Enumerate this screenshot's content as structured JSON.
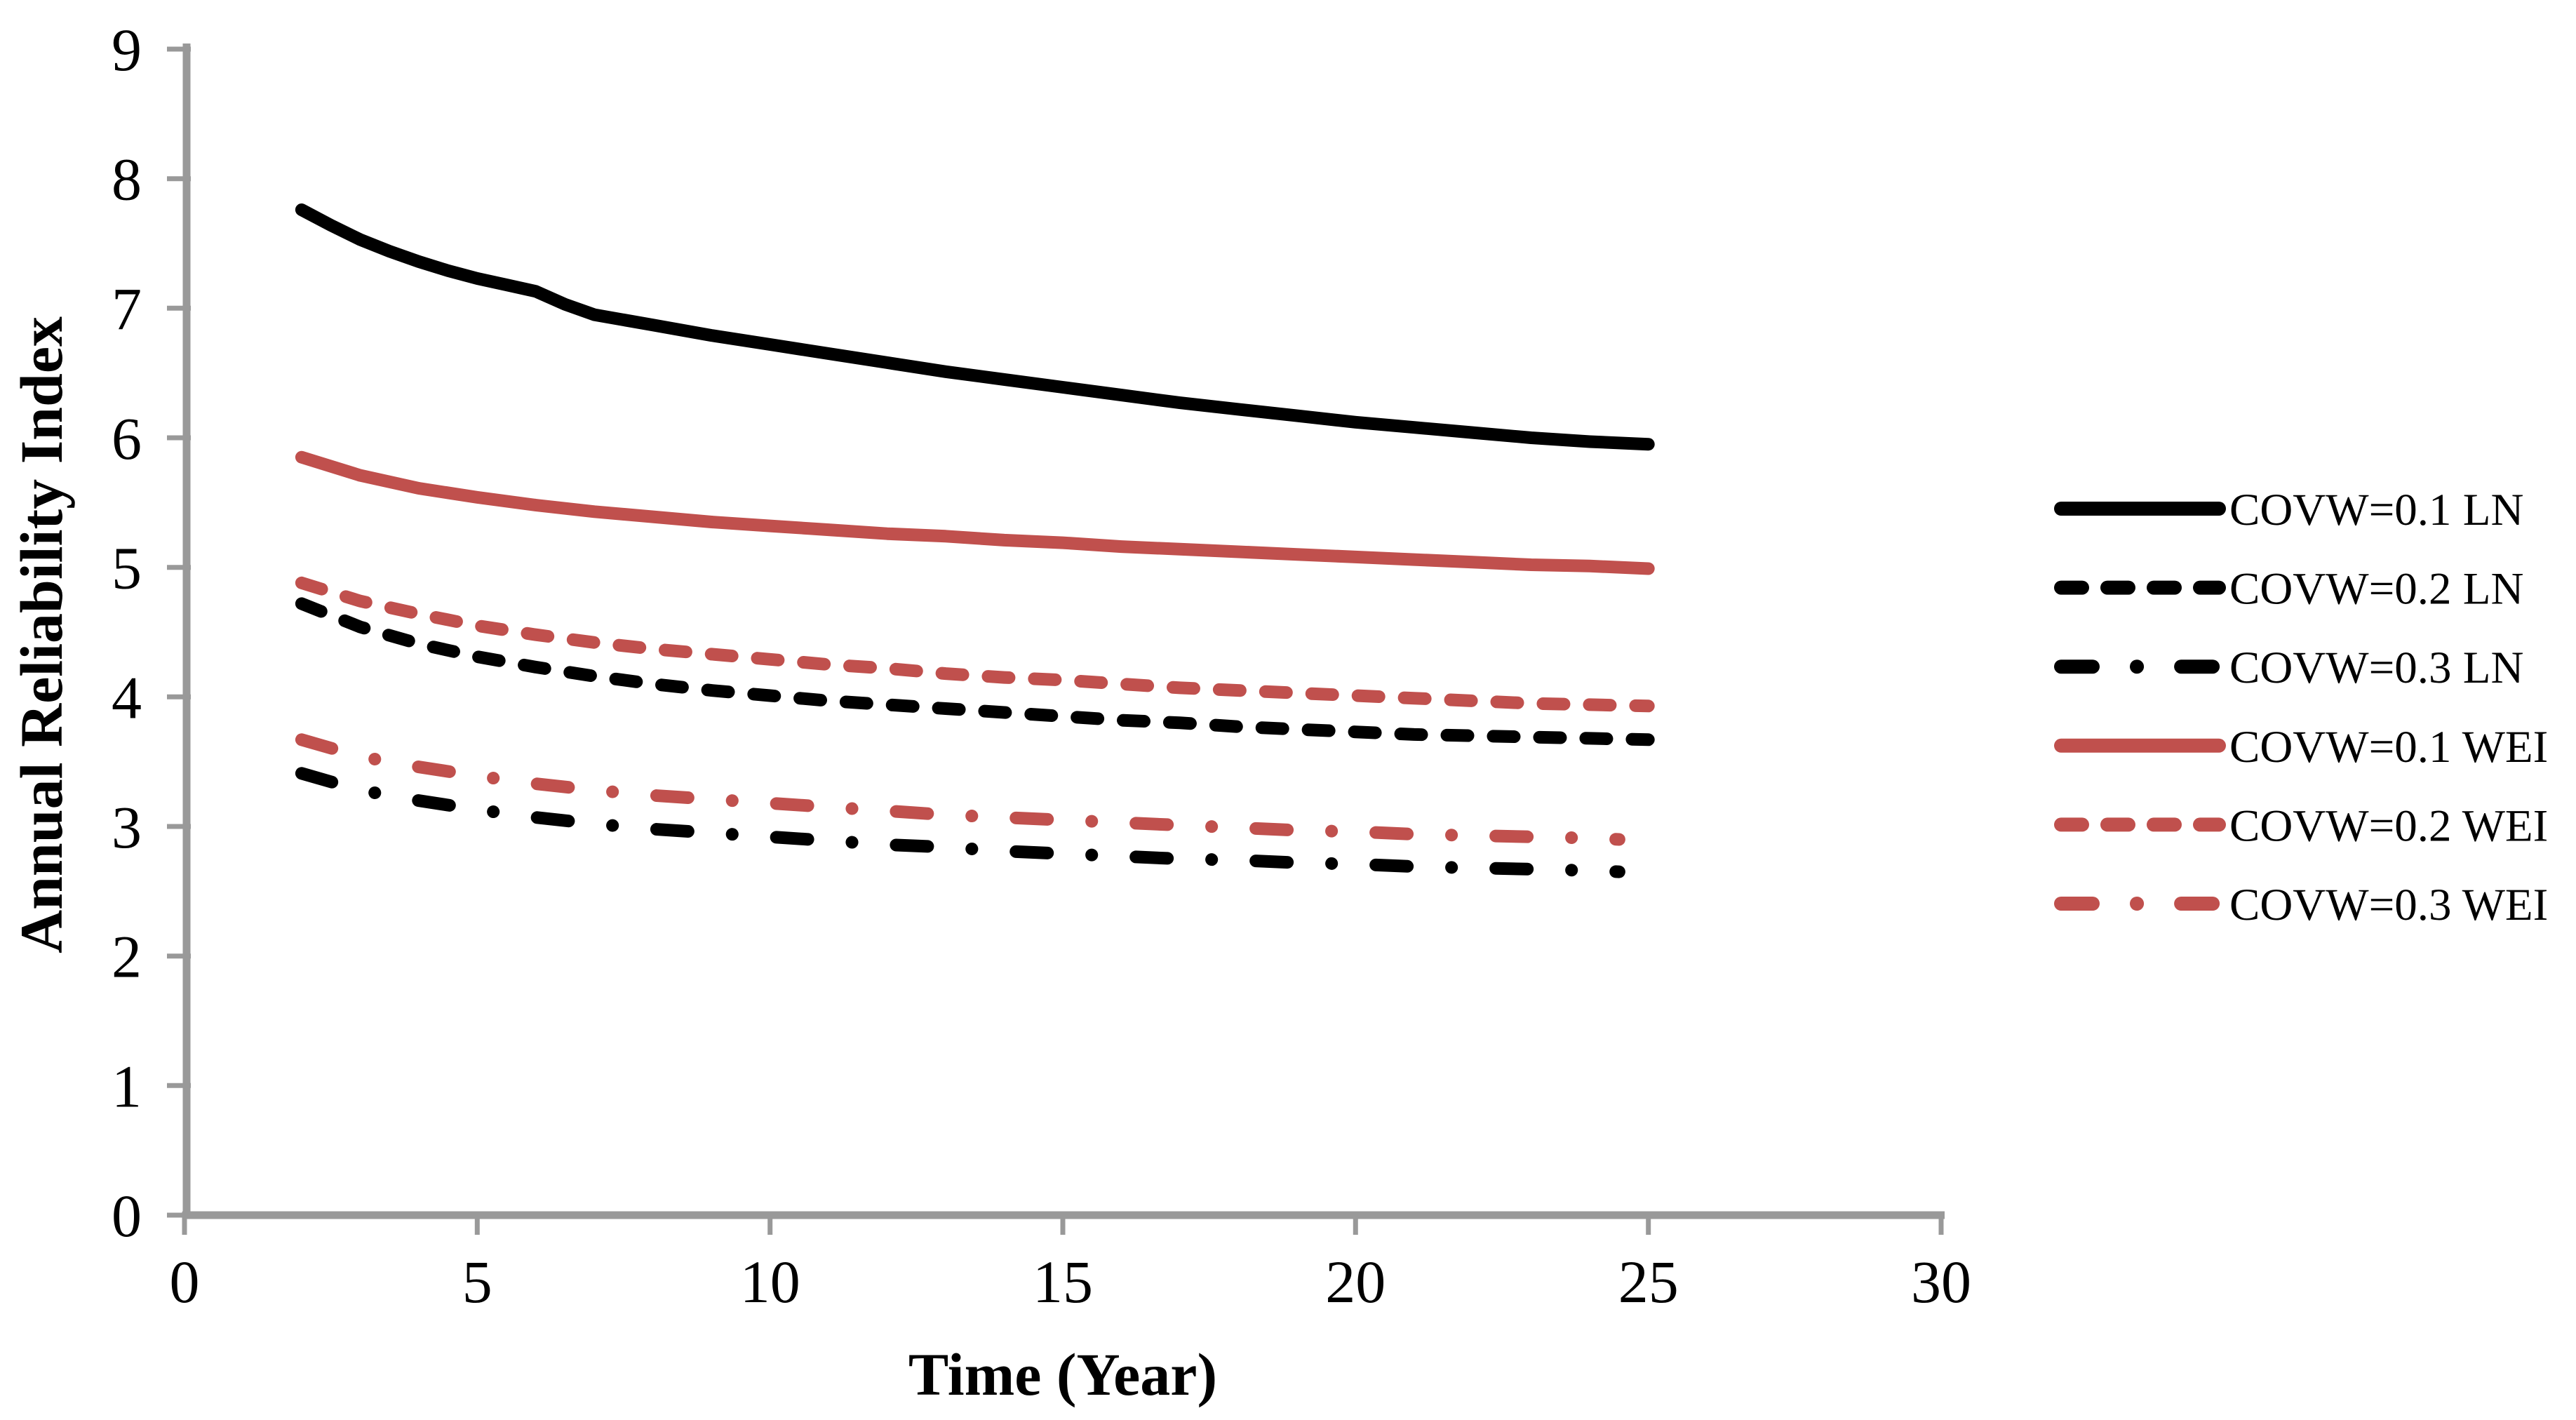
{
  "chart_data": {
    "type": "line",
    "title": "",
    "xlabel": "Time (Year)",
    "ylabel": "Annual Reliability Index",
    "xlim": [
      0,
      30
    ],
    "ylim": [
      0,
      9
    ],
    "x_ticks": [
      0,
      5,
      10,
      15,
      20,
      25,
      30
    ],
    "y_ticks": [
      0,
      1,
      2,
      3,
      4,
      5,
      6,
      7,
      8,
      9
    ],
    "grid": false,
    "legend_position": "right-outside",
    "background_color": "#ffffff",
    "axis_color": "#999999",
    "series": [
      {
        "name": "COVW=0.1 LN",
        "color": "#000000",
        "style": "solid",
        "points": [
          [
            2,
            7.76
          ],
          [
            2.5,
            7.64
          ],
          [
            3,
            7.53
          ],
          [
            3.5,
            7.44
          ],
          [
            4,
            7.36
          ],
          [
            4.5,
            7.29
          ],
          [
            5,
            7.23
          ],
          [
            5.5,
            7.18
          ],
          [
            6,
            7.13
          ],
          [
            6.5,
            7.03
          ],
          [
            7,
            6.95
          ],
          [
            8,
            6.87
          ],
          [
            9,
            6.79
          ],
          [
            10,
            6.72
          ],
          [
            11,
            6.65
          ],
          [
            12,
            6.58
          ],
          [
            13,
            6.51
          ],
          [
            14,
            6.45
          ],
          [
            15,
            6.39
          ],
          [
            16,
            6.33
          ],
          [
            17,
            6.27
          ],
          [
            18,
            6.22
          ],
          [
            19,
            6.17
          ],
          [
            20,
            6.12
          ],
          [
            21,
            6.08
          ],
          [
            22,
            6.04
          ],
          [
            23,
            6.0
          ],
          [
            24,
            5.97
          ],
          [
            25,
            5.95
          ]
        ]
      },
      {
        "name": "COVW=0.2 LN",
        "color": "#000000",
        "style": "dashed",
        "points": [
          [
            2,
            4.72
          ],
          [
            3,
            4.54
          ],
          [
            4,
            4.41
          ],
          [
            5,
            4.31
          ],
          [
            6,
            4.23
          ],
          [
            7,
            4.16
          ],
          [
            8,
            4.1
          ],
          [
            9,
            4.05
          ],
          [
            10,
            4.01
          ],
          [
            11,
            3.97
          ],
          [
            12,
            3.94
          ],
          [
            13,
            3.91
          ],
          [
            14,
            3.88
          ],
          [
            15,
            3.85
          ],
          [
            16,
            3.82
          ],
          [
            17,
            3.8
          ],
          [
            18,
            3.77
          ],
          [
            19,
            3.75
          ],
          [
            20,
            3.73
          ],
          [
            21,
            3.71
          ],
          [
            22,
            3.7
          ],
          [
            23,
            3.69
          ],
          [
            24,
            3.68
          ],
          [
            25,
            3.67
          ]
        ]
      },
      {
        "name": "COVW=0.3 LN",
        "color": "#000000",
        "style": "dashdot",
        "points": [
          [
            2,
            3.41
          ],
          [
            3,
            3.28
          ],
          [
            4,
            3.2
          ],
          [
            5,
            3.13
          ],
          [
            6,
            3.07
          ],
          [
            7,
            3.02
          ],
          [
            8,
            2.98
          ],
          [
            9,
            2.95
          ],
          [
            10,
            2.92
          ],
          [
            11,
            2.89
          ],
          [
            12,
            2.86
          ],
          [
            13,
            2.84
          ],
          [
            14,
            2.81
          ],
          [
            15,
            2.79
          ],
          [
            16,
            2.77
          ],
          [
            17,
            2.75
          ],
          [
            18,
            2.74
          ],
          [
            19,
            2.72
          ],
          [
            20,
            2.71
          ],
          [
            21,
            2.69
          ],
          [
            22,
            2.68
          ],
          [
            23,
            2.67
          ],
          [
            24,
            2.66
          ],
          [
            24.5,
            2.65
          ]
        ]
      },
      {
        "name": "COVW=0.1 WEI",
        "color": "#c0504d",
        "style": "solid",
        "points": [
          [
            2,
            5.85
          ],
          [
            3,
            5.71
          ],
          [
            4,
            5.61
          ],
          [
            5,
            5.54
          ],
          [
            6,
            5.48
          ],
          [
            7,
            5.43
          ],
          [
            8,
            5.39
          ],
          [
            9,
            5.35
          ],
          [
            10,
            5.32
          ],
          [
            11,
            5.29
          ],
          [
            12,
            5.26
          ],
          [
            13,
            5.24
          ],
          [
            14,
            5.21
          ],
          [
            15,
            5.19
          ],
          [
            16,
            5.16
          ],
          [
            17,
            5.14
          ],
          [
            18,
            5.12
          ],
          [
            19,
            5.1
          ],
          [
            20,
            5.08
          ],
          [
            21,
            5.06
          ],
          [
            22,
            5.04
          ],
          [
            23,
            5.02
          ],
          [
            24,
            5.01
          ],
          [
            25,
            4.99
          ]
        ]
      },
      {
        "name": "COVW=0.2 WEI",
        "color": "#c0504d",
        "style": "dashed",
        "points": [
          [
            2,
            4.88
          ],
          [
            3,
            4.74
          ],
          [
            4,
            4.64
          ],
          [
            5,
            4.55
          ],
          [
            6,
            4.48
          ],
          [
            7,
            4.42
          ],
          [
            8,
            4.37
          ],
          [
            9,
            4.33
          ],
          [
            10,
            4.29
          ],
          [
            11,
            4.25
          ],
          [
            12,
            4.22
          ],
          [
            13,
            4.18
          ],
          [
            14,
            4.15
          ],
          [
            15,
            4.13
          ],
          [
            16,
            4.1
          ],
          [
            17,
            4.07
          ],
          [
            18,
            4.05
          ],
          [
            19,
            4.03
          ],
          [
            20,
            4.01
          ],
          [
            21,
            3.99
          ],
          [
            22,
            3.97
          ],
          [
            23,
            3.95
          ],
          [
            24,
            3.94
          ],
          [
            25,
            3.93
          ]
        ]
      },
      {
        "name": "COVW=0.3 WEI",
        "color": "#c0504d",
        "style": "dashdot",
        "points": [
          [
            2,
            3.67
          ],
          [
            3,
            3.54
          ],
          [
            4,
            3.46
          ],
          [
            5,
            3.39
          ],
          [
            6,
            3.33
          ],
          [
            7,
            3.28
          ],
          [
            8,
            3.24
          ],
          [
            9,
            3.21
          ],
          [
            10,
            3.18
          ],
          [
            11,
            3.15
          ],
          [
            12,
            3.12
          ],
          [
            13,
            3.09
          ],
          [
            14,
            3.07
          ],
          [
            15,
            3.05
          ],
          [
            16,
            3.03
          ],
          [
            17,
            3.01
          ],
          [
            18,
            2.99
          ],
          [
            19,
            2.97
          ],
          [
            20,
            2.96
          ],
          [
            21,
            2.94
          ],
          [
            22,
            2.93
          ],
          [
            23,
            2.92
          ],
          [
            24,
            2.91
          ],
          [
            24.5,
            2.9
          ]
        ]
      }
    ]
  }
}
